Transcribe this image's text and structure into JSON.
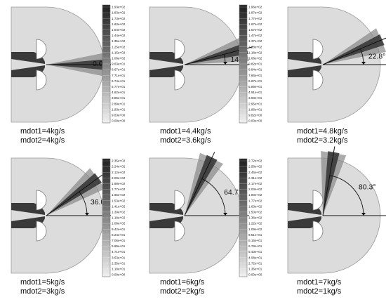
{
  "panels": [
    {
      "angle": "0.0°",
      "angle_deg": 0.0,
      "mdot1": "mdot1=4kg/s",
      "mdot2": "mdot2=4kg/s"
    },
    {
      "angle": "14.6°",
      "angle_deg": 14.6,
      "mdot1": "mdot1=4.4kg/s",
      "mdot2": "mdot2=3.6kg/s"
    },
    {
      "angle": "22.8°",
      "angle_deg": 22.8,
      "mdot1": "mdot1=4.8kg/s",
      "mdot2": "mdot2=3.2kg/s"
    },
    {
      "angle": "36.0°",
      "angle_deg": 36.0,
      "mdot1": "mdot1=5kg/s",
      "mdot2": "mdot2=3kg/s"
    },
    {
      "angle": "64.7°",
      "angle_deg": 64.7,
      "mdot1": "mdot1=6kg/s",
      "mdot2": "mdot2=2kg/s"
    },
    {
      "angle": "80.3°",
      "angle_deg": 80.3,
      "mdot1": "mdot1=7kg/s",
      "mdot2": "mdot2=1kg/s"
    }
  ],
  "colorbars": [
    {
      "labels": [
        "1.93e+02",
        "1.83e+02",
        "1.73e+02",
        "1.63e+02",
        "1.54e+02",
        "1.44e+02",
        "1.35e+02",
        "1.25e+02",
        "1.15e+02",
        "1.06e+02",
        "9.63e+01",
        "8.67e+01",
        "7.71e+01",
        "6.74e+01",
        "5.77e+01",
        "4.82e+01",
        "3.85e+01",
        "2.89e+01",
        "1.93e+01",
        "9.63e+00",
        "0.00e+00"
      ]
    },
    {
      "labels": [
        "1.96e+02",
        "1.87e+02",
        "1.77e+02",
        "1.67e+02",
        "1.57e+02",
        "1.47e+02",
        "1.37e+02",
        "1.28e+02",
        "1.18e+02",
        "1.08e+02",
        "9.82e+01",
        "8.84e+01",
        "7.86e+01",
        "6.87e+01",
        "5.89e+01",
        "4.91e+01",
        "3.93e+01",
        "2.95e+01",
        "1.96e+01",
        "9.82e+00",
        "0.00e+00"
      ]
    },
    {
      "labels": [
        "2.35e+02",
        "2.24e+02",
        "2.12e+02",
        "2.00e+02",
        "1.88e+02",
        "1.77e+02",
        "1.65e+02",
        "1.53e+02",
        "1.41e+02",
        "1.30e+02",
        "1.18e+02",
        "1.06e+02",
        "9.42e+01",
        "8.24e+01",
        "7.06e+01",
        "5.89e+01",
        "4.71e+01",
        "3.53e+01",
        "2.35e+01",
        "1.18e+01",
        "0.00e+00"
      ]
    },
    {
      "labels": [
        "2.72e+02",
        "2.58e+02",
        "2.45e+02",
        "2.31e+02",
        "2.17e+02",
        "2.04e+02",
        "1.90e+02",
        "1.77e+02",
        "1.63e+02",
        "1.50e+02",
        "1.36e+02",
        "1.22e+02",
        "1.09e+02",
        "9.51e+01",
        "8.15e+01",
        "6.79e+01",
        "5.43e+01",
        "4.08e+01",
        "2.72e+01",
        "1.36e+01",
        "0.00e+00"
      ]
    }
  ]
}
